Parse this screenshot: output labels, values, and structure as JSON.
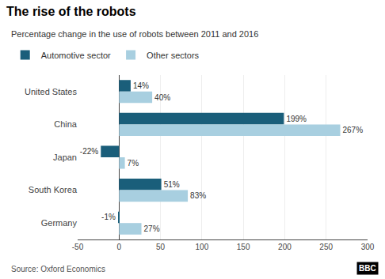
{
  "chart_data": {
    "type": "bar",
    "orientation": "horizontal",
    "title": "The rise of the robots",
    "subtitle": "Percentage change in the use of robots between 2011 and 2016",
    "categories": [
      "United States",
      "China",
      "Japan",
      "South Korea",
      "Germany"
    ],
    "series": [
      {
        "name": "Automotive sector",
        "color": "#1a5e7a",
        "values": [
          14,
          199,
          -22,
          51,
          -1
        ],
        "value_labels": [
          "14%",
          "199%",
          "-22%",
          "51%",
          "-1%"
        ]
      },
      {
        "name": "Other sectors",
        "color": "#a8cfe0",
        "values": [
          40,
          267,
          7,
          83,
          27
        ],
        "value_labels": [
          "40%",
          "267%",
          "7%",
          "83%",
          "27%"
        ]
      }
    ],
    "xlim": [
      -50,
      300
    ],
    "xticks": [
      -50,
      0,
      50,
      100,
      150,
      200,
      250,
      300
    ],
    "grid": true,
    "legend": "top left",
    "data_labels": true,
    "annotations": [
      "Source: Oxford Economics",
      "BBC"
    ]
  }
}
